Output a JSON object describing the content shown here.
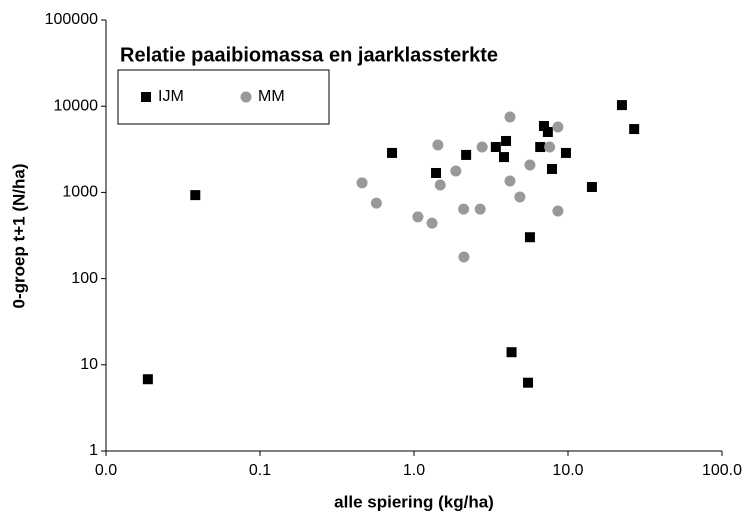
{
  "chart_data": {
    "type": "scatter",
    "title": "Relatie paaibiomassa en jaarklassterkte",
    "x_label": "alle spiering (kg/ha)",
    "y_label": "0-groep t+1 (N/ha)",
    "log_x": true,
    "log_y": true,
    "legend": "top-left",
    "xlim": [
      0.01,
      100
    ],
    "ylim": [
      1,
      100000
    ],
    "xticks": [
      {
        "value": 0.01,
        "label": "0.0"
      },
      {
        "value": 0.1,
        "label": "0.1"
      },
      {
        "value": 1,
        "label": "1.0"
      },
      {
        "value": 10,
        "label": "10.0"
      },
      {
        "value": 100,
        "label": "100.0"
      }
    ],
    "yticks": [
      1,
      10,
      100,
      1000,
      10000,
      100000
    ],
    "series": [
      {
        "name": "IJM",
        "color": "#000000",
        "marker": "square",
        "x": [
          0.0187,
          0.038,
          0.72,
          1.39,
          2.18,
          3.4,
          3.96,
          3.84,
          4.3,
          6.98,
          7.4,
          6.6,
          7.87,
          9.7,
          5.66,
          5.5,
          14.3,
          22.4,
          26.9
        ],
        "values": [
          6.8,
          930,
          2870,
          1680,
          2720,
          3360,
          3950,
          2570,
          14,
          5890,
          5020,
          3360,
          1870,
          2870,
          302,
          6.2,
          1155,
          10300,
          5430
        ]
      },
      {
        "name": "MM",
        "color": "#999999",
        "marker": "circle",
        "x": [
          0.46,
          0.57,
          1.06,
          1.31,
          1.43,
          1.48,
          1.87,
          2.1,
          2.69,
          2.77,
          2.11,
          4.2,
          4.2,
          4.87,
          5.66,
          8.6,
          7.6,
          8.6
        ],
        "values": [
          1290,
          750,
          520,
          440,
          3550,
          1220,
          1770,
          640,
          640,
          3360,
          178,
          7500,
          1355,
          885,
          2080,
          5740,
          3360,
          608
        ]
      }
    ]
  }
}
